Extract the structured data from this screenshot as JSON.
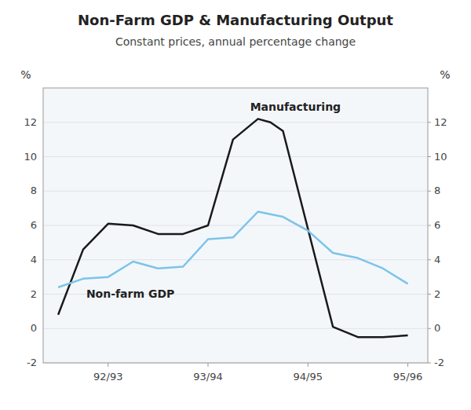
{
  "chart_data": {
    "type": "line",
    "title": "Non-Farm GDP & Manufacturing Output",
    "subtitle": "Constant prices, annual percentage change",
    "ylabel": "%",
    "y2label": "%",
    "xlim": [
      -0.3,
      7.4
    ],
    "xticks": [
      {
        "value": 1,
        "label": "92/93"
      },
      {
        "value": 3,
        "label": "93/94"
      },
      {
        "value": 5,
        "label": "94/95"
      },
      {
        "value": 7,
        "label": "95/96"
      }
    ],
    "ylim": [
      -2,
      14
    ],
    "yticks": [
      -2,
      0,
      2,
      4,
      6,
      8,
      10,
      12
    ],
    "y2lim": [
      -2,
      14
    ],
    "y2ticks": [
      -2,
      0,
      2,
      4,
      6,
      8,
      10,
      12
    ],
    "grid": true,
    "series": [
      {
        "name": "Manufacturing",
        "color": "#1a1a1a",
        "x": [
          0.0,
          0.5,
          1.0,
          1.5,
          2.0,
          2.5,
          3.0,
          3.5,
          4.0,
          4.25,
          4.5,
          5.5,
          6.0,
          6.5,
          7.0
        ],
        "values": [
          0.8,
          4.6,
          6.1,
          6.0,
          5.5,
          5.5,
          6.0,
          11.0,
          12.2,
          12.0,
          11.5,
          0.1,
          -0.5,
          -0.5,
          -0.4
        ]
      },
      {
        "name": "Non-farm GDP",
        "color": "#7cc4ea",
        "x": [
          0.0,
          0.5,
          1.0,
          1.5,
          2.0,
          2.5,
          3.0,
          3.5,
          4.0,
          4.5,
          5.0,
          5.5,
          6.0,
          6.5,
          7.0
        ],
        "values": [
          2.4,
          2.9,
          3.0,
          3.9,
          3.5,
          3.6,
          5.2,
          5.3,
          6.8,
          6.5,
          5.7,
          4.4,
          4.1,
          3.5,
          2.6
        ]
      }
    ]
  }
}
